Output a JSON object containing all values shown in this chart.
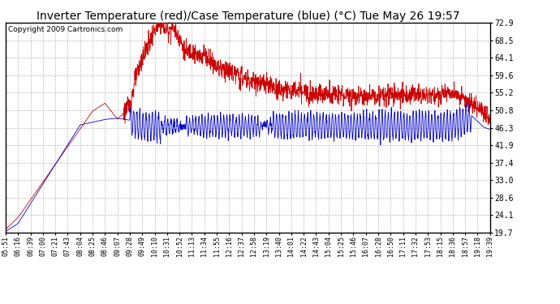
{
  "title": "Inverter Temperature (red)/Case Temperature (blue) (°C) Tue May 26 19:57",
  "copyright": "Copyright 2009 Cartronics.com",
  "yticks": [
    19.7,
    24.1,
    28.6,
    33.0,
    37.4,
    41.9,
    46.3,
    50.8,
    55.2,
    59.6,
    64.1,
    68.5,
    72.9
  ],
  "xtick_labels": [
    "05:51",
    "06:16",
    "06:39",
    "07:00",
    "07:21",
    "07:43",
    "08:04",
    "08:25",
    "08:46",
    "09:07",
    "09:28",
    "09:49",
    "10:10",
    "10:31",
    "10:52",
    "11:13",
    "11:34",
    "11:55",
    "12:16",
    "12:37",
    "12:58",
    "13:19",
    "13:40",
    "14:01",
    "14:22",
    "14:43",
    "15:04",
    "15:25",
    "15:46",
    "16:07",
    "16:28",
    "16:50",
    "17:11",
    "17:32",
    "17:53",
    "18:15",
    "18:36",
    "18:57",
    "19:18",
    "19:39"
  ],
  "ylim_min": 19.7,
  "ylim_max": 72.9,
  "red_color": "#cc0000",
  "blue_color": "#0000cc",
  "background_color": "#ffffff",
  "grid_color": "#bbbbbb",
  "title_fontsize": 10,
  "copyright_fontsize": 6.5
}
